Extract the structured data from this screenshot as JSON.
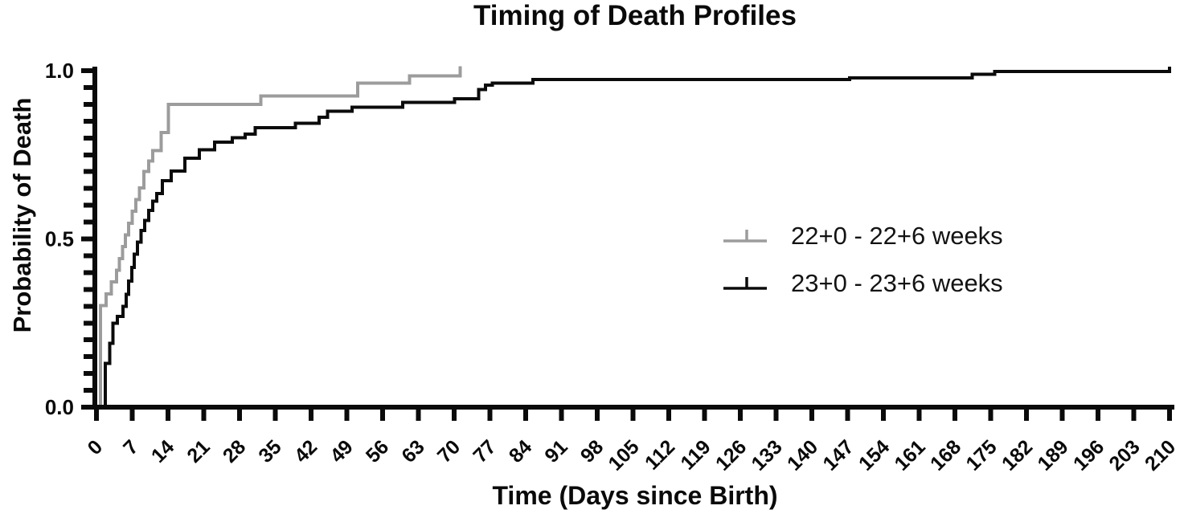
{
  "chart_data": {
    "type": "step",
    "subtype": "kaplan-meier-cumulative-incidence",
    "title": "Timing of Death Profiles",
    "xlabel": "Time (Days since Birth)",
    "ylabel": "Probability of Death",
    "xlim": [
      0,
      210
    ],
    "ylim": [
      0.0,
      1.0
    ],
    "grid": "off",
    "legend_position": "center-right",
    "axis_color": "#0a0a0a",
    "background_color": "#ffffff",
    "x_ticks": [
      0,
      7,
      14,
      21,
      28,
      35,
      42,
      49,
      56,
      63,
      70,
      77,
      84,
      91,
      98,
      105,
      112,
      119,
      126,
      133,
      140,
      147,
      154,
      161,
      168,
      175,
      182,
      189,
      196,
      203,
      210
    ],
    "y_ticks": [
      {
        "value": 0.0,
        "label": "0.0"
      },
      {
        "value": 0.5,
        "label": "0.5"
      },
      {
        "value": 1.0,
        "label": "1.0"
      }
    ],
    "y_minor_interval": 0.05,
    "series": [
      {
        "name": "22+0 - 22+6 weeks",
        "color": "#9c9c9c",
        "end_day": 71.2,
        "end_censor_tick": true,
        "points": [
          [
            0.8,
            0.302
          ],
          [
            1.9,
            0.337
          ],
          [
            2.9,
            0.372
          ],
          [
            3.9,
            0.407
          ],
          [
            4.5,
            0.442
          ],
          [
            5.1,
            0.477
          ],
          [
            5.7,
            0.512
          ],
          [
            6.3,
            0.547
          ],
          [
            7.0,
            0.582
          ],
          [
            7.7,
            0.617
          ],
          [
            8.4,
            0.652
          ],
          [
            9.3,
            0.7
          ],
          [
            10.2,
            0.732
          ],
          [
            11.0,
            0.762
          ],
          [
            12.7,
            0.816
          ],
          [
            14.1,
            0.9
          ],
          [
            32.2,
            0.925
          ],
          [
            51.1,
            0.963
          ],
          [
            61.3,
            0.985
          ]
        ]
      },
      {
        "name": "23+0 - 23+6 weeks",
        "color": "#0b0b0b",
        "end_day": 210,
        "end_censor_tick": true,
        "points": [
          [
            1.7,
            0.13
          ],
          [
            2.6,
            0.19
          ],
          [
            3.2,
            0.25
          ],
          [
            4.1,
            0.27
          ],
          [
            5.2,
            0.3
          ],
          [
            5.8,
            0.335
          ],
          [
            6.3,
            0.375
          ],
          [
            6.9,
            0.415
          ],
          [
            7.4,
            0.455
          ],
          [
            8.0,
            0.49
          ],
          [
            8.7,
            0.525
          ],
          [
            9.4,
            0.555
          ],
          [
            10.2,
            0.585
          ],
          [
            11.0,
            0.612
          ],
          [
            11.8,
            0.635
          ],
          [
            12.9,
            0.673
          ],
          [
            14.6,
            0.702
          ],
          [
            17.3,
            0.74
          ],
          [
            20.1,
            0.765
          ],
          [
            23.1,
            0.788
          ],
          [
            26.6,
            0.801
          ],
          [
            29.1,
            0.812
          ],
          [
            31.1,
            0.831
          ],
          [
            38.9,
            0.844
          ],
          [
            43.6,
            0.862
          ],
          [
            45.2,
            0.879
          ],
          [
            50.0,
            0.891
          ],
          [
            59.9,
            0.906
          ],
          [
            70.1,
            0.917
          ],
          [
            74.8,
            0.944
          ],
          [
            76.1,
            0.957
          ],
          [
            77.5,
            0.963
          ],
          [
            85.4,
            0.974
          ],
          [
            147.4,
            0.979
          ],
          [
            171.4,
            0.989
          ],
          [
            175.8,
            0.998
          ]
        ]
      }
    ]
  }
}
